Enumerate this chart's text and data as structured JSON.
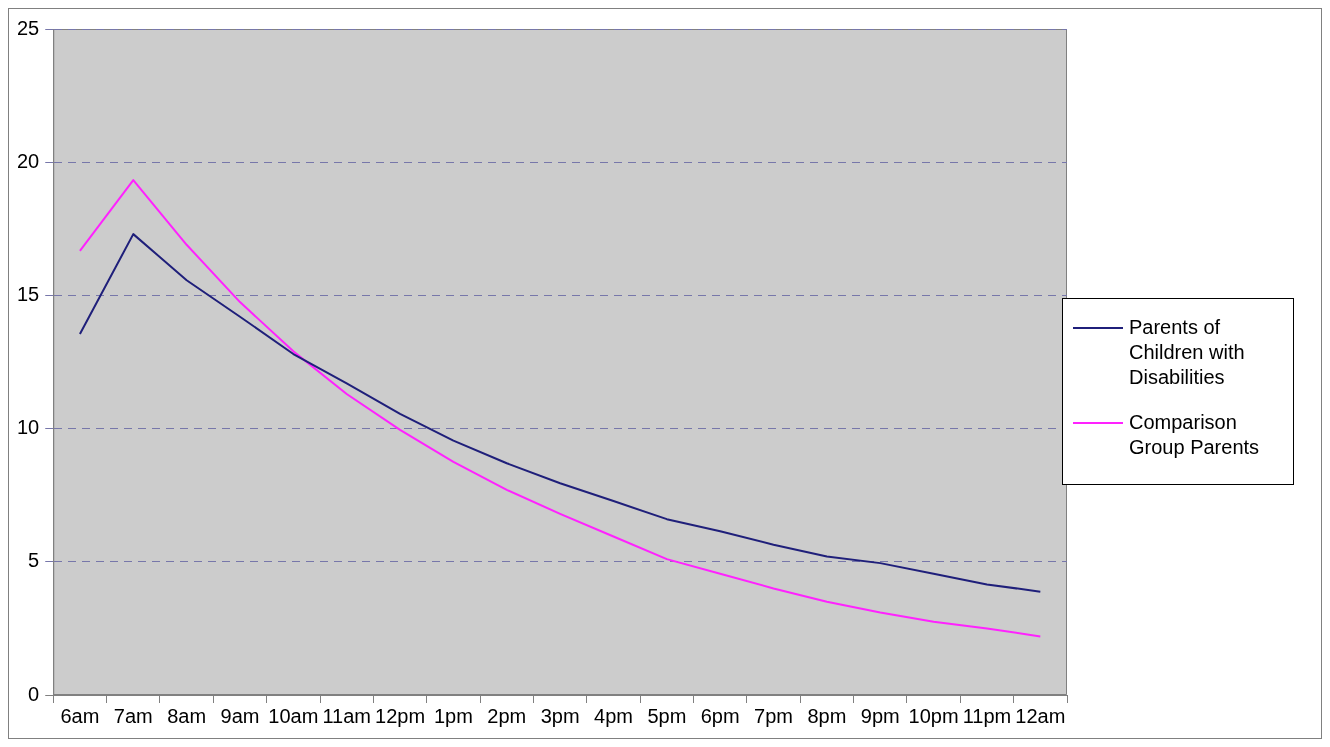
{
  "chart_data": {
    "type": "line",
    "categories": [
      "6am",
      "7am",
      "8am",
      "9am",
      "10am",
      "11am",
      "12pm",
      "1pm",
      "2pm",
      "3pm",
      "4pm",
      "5pm",
      "6pm",
      "7pm",
      "8pm",
      "9pm",
      "10pm",
      "11pm",
      "12am"
    ],
    "series": [
      {
        "name": "Parents of Children with Disabilities",
        "color": "#1f1f7a",
        "values": [
          13.55,
          17.3,
          15.57,
          14.2,
          12.8,
          11.7,
          10.55,
          9.55,
          8.7,
          7.95,
          7.28,
          6.6,
          6.15,
          5.64,
          5.2,
          4.95,
          4.55,
          4.15,
          3.88
        ]
      },
      {
        "name": "Comparison Group Parents",
        "color": "#ff22ff",
        "values": [
          16.67,
          19.33,
          16.9,
          14.75,
          12.9,
          11.3,
          9.95,
          8.75,
          7.7,
          6.8,
          5.95,
          5.1,
          4.55,
          4.0,
          3.5,
          3.1,
          2.75,
          2.5,
          2.2
        ]
      }
    ],
    "ylim": [
      0,
      25
    ],
    "yticks": [
      0,
      5,
      10,
      15,
      20,
      25
    ],
    "grid": "y",
    "legend": "right",
    "marker": "none",
    "line_style": "solid"
  }
}
